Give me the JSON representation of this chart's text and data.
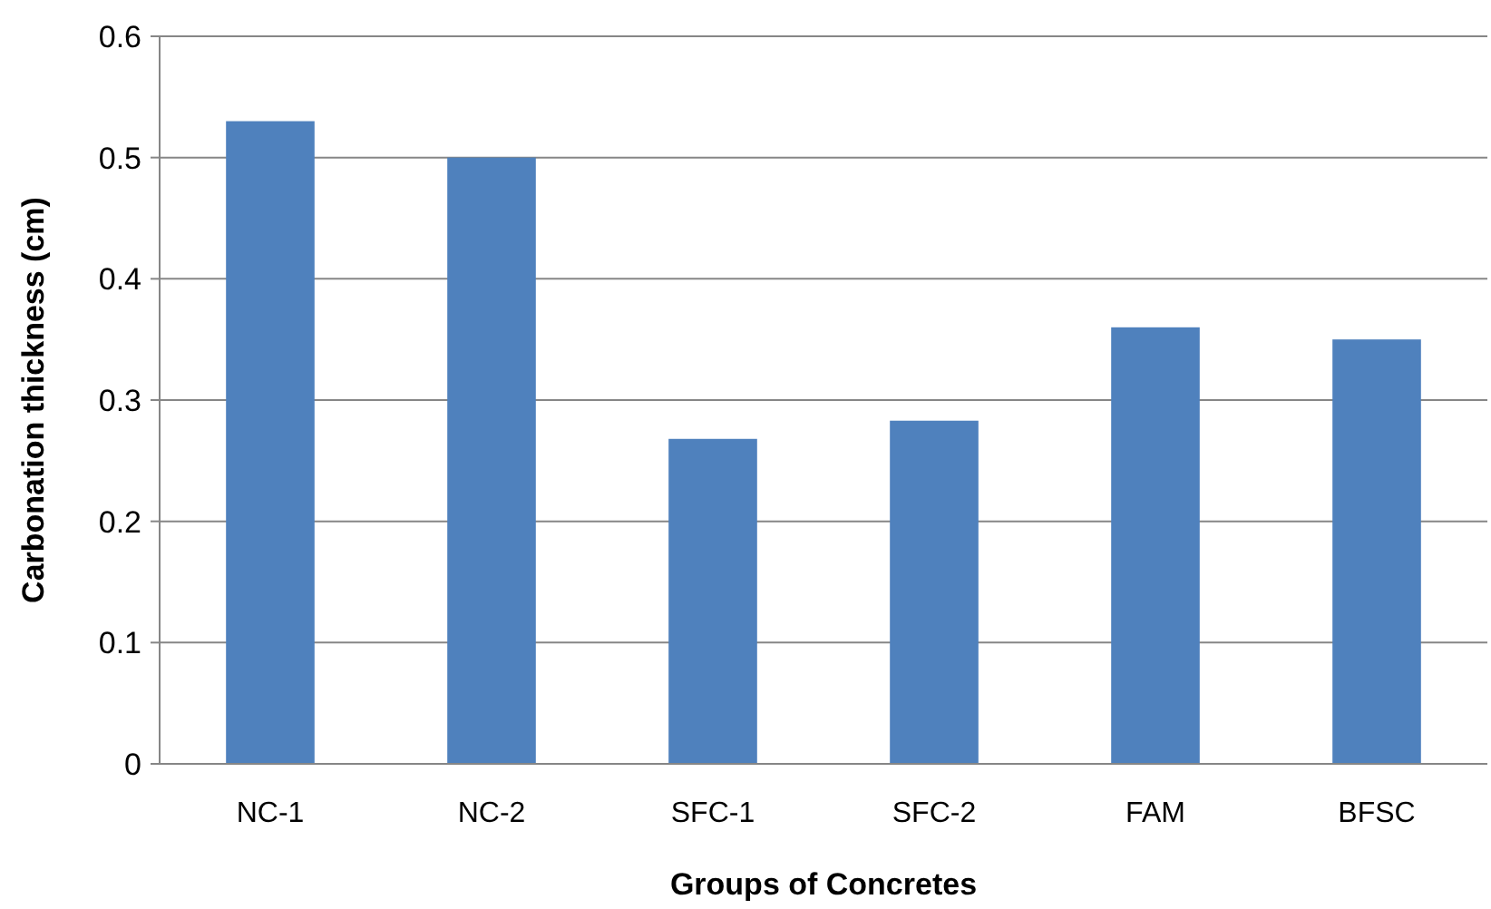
{
  "chart_data": {
    "type": "bar",
    "xlabel": "Groups of Concretes",
    "ylabel": "Carbonation thickness (cm)",
    "categories": [
      "NC-1",
      "NC-2",
      "SFC-1",
      "SFC-2",
      "FAM",
      "BFSC"
    ],
    "values": [
      0.53,
      0.5,
      0.268,
      0.283,
      0.36,
      0.35
    ],
    "color": "#4f81bd",
    "ylim": [
      0,
      0.6
    ],
    "yticks": [
      0,
      {
        "value": 0.1,
        "label": "0.1"
      },
      {
        "value": 0.2,
        "label": "0.2"
      },
      {
        "value": 0.3,
        "label": "0.3"
      },
      {
        "value": 0.4,
        "label": "0.4"
      },
      {
        "value": 0.5,
        "label": "0.5"
      },
      {
        "value": 0.6,
        "label": "0.6"
      }
    ],
    "grid": "y"
  }
}
